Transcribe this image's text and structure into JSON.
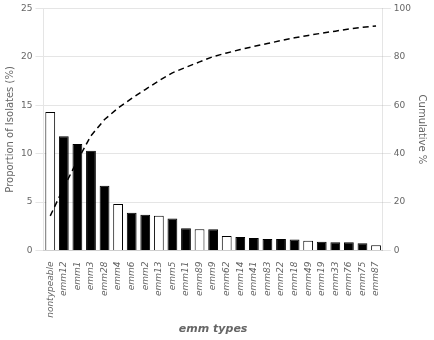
{
  "chart_data": {
    "type": "bar",
    "categories": [
      "nontypeable",
      "emm12",
      "emm1",
      "emm3",
      "emm28",
      "emm4",
      "emm6",
      "emm2",
      "emm13",
      "emm5",
      "emm11",
      "emm89",
      "emm9",
      "emm62",
      "emm14",
      "emm41",
      "emm83",
      "emm22",
      "emm18",
      "emm49",
      "emm19",
      "emm33",
      "emm76",
      "emm75",
      "emm87"
    ],
    "series": [
      {
        "type": "bar",
        "colors": [
          "white",
          "black",
          "black",
          "black",
          "black",
          "white",
          "black",
          "black",
          "white",
          "black",
          "black",
          "white",
          "black",
          "white",
          "black",
          "black",
          "black",
          "black",
          "black",
          "white",
          "black",
          "black",
          "black",
          "black",
          "white"
        ],
        "values": [
          14.3,
          11.8,
          11.0,
          10.3,
          6.7,
          4.8,
          3.9,
          3.7,
          3.6,
          3.3,
          2.3,
          2.2,
          2.2,
          1.5,
          1.4,
          1.3,
          1.2,
          1.2,
          1.15,
          1.0,
          0.9,
          0.85,
          0.85,
          0.75,
          0.55
        ]
      },
      {
        "type": "line",
        "axis": "y2",
        "color": "black",
        "line_style": "dashed",
        "values": [
          14.3,
          26.1,
          37.1,
          47.4,
          54.1,
          58.9,
          62.8,
          66.5,
          70.1,
          73.4,
          75.7,
          77.9,
          80.1,
          81.6,
          83.0,
          84.3,
          85.5,
          86.7,
          87.85,
          88.85,
          89.75,
          90.6,
          91.45,
          92.2,
          92.75
        ]
      }
    ],
    "xlabel": "emm types",
    "ylabel": "Proportion of Isolates (%)",
    "y2label": "Cumulative %",
    "ylim": [
      0,
      25
    ],
    "yticks": [
      0,
      5,
      10,
      15,
      20,
      25
    ],
    "y2lim": [
      0,
      100
    ],
    "y2ticks": [
      0,
      20,
      40,
      60,
      80,
      100
    ],
    "grid": true
  }
}
